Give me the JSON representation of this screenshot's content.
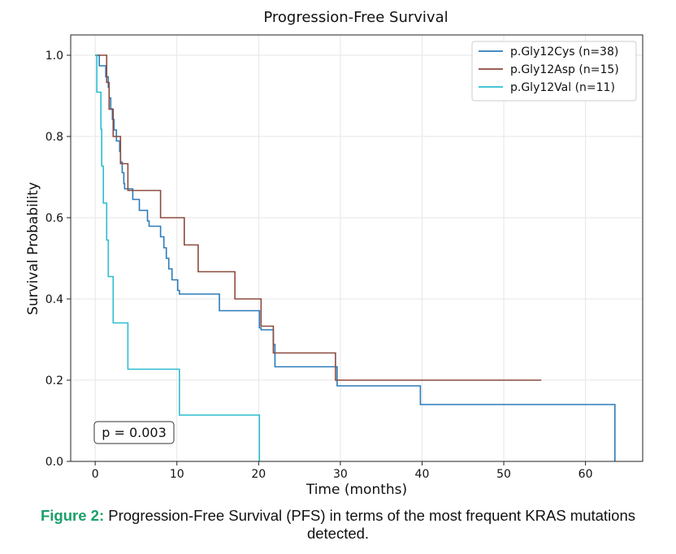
{
  "chart_data": {
    "type": "line",
    "title": "Progression-Free Survival",
    "xlabel": "Time (months)",
    "ylabel": "Survival Probability",
    "xlim": [
      -3,
      67
    ],
    "ylim": [
      0,
      1.05
    ],
    "xticks": [
      0,
      10,
      20,
      30,
      40,
      50,
      60
    ],
    "yticks": [
      0.0,
      0.2,
      0.4,
      0.6,
      0.8,
      1.0
    ],
    "xtick_labels": [
      "0",
      "10",
      "20",
      "30",
      "40",
      "50",
      "60"
    ],
    "ytick_labels": [
      "0.0",
      "0.2",
      "0.4",
      "0.6",
      "0.8",
      "1.0"
    ],
    "grid": true,
    "legend_position": "top-right",
    "annotation": "p = 0.003",
    "series": [
      {
        "name": "p.Gly12Cys (n=38)",
        "color": "#2b7bba",
        "step_points": [
          [
            0.0,
            1.0
          ],
          [
            0.5,
            1.0
          ],
          [
            0.5,
            0.974
          ],
          [
            1.3,
            0.974
          ],
          [
            1.3,
            0.947
          ],
          [
            1.6,
            0.947
          ],
          [
            1.6,
            0.921
          ],
          [
            1.7,
            0.921
          ],
          [
            1.7,
            0.895
          ],
          [
            1.9,
            0.895
          ],
          [
            1.9,
            0.868
          ],
          [
            2.1,
            0.868
          ],
          [
            2.1,
            0.842
          ],
          [
            2.3,
            0.842
          ],
          [
            2.3,
            0.816
          ],
          [
            2.6,
            0.816
          ],
          [
            2.6,
            0.789
          ],
          [
            3.0,
            0.789
          ],
          [
            3.0,
            0.763
          ],
          [
            3.1,
            0.763
          ],
          [
            3.1,
            0.737
          ],
          [
            3.3,
            0.737
          ],
          [
            3.3,
            0.711
          ],
          [
            3.5,
            0.711
          ],
          [
            3.5,
            0.684
          ],
          [
            3.6,
            0.684
          ],
          [
            3.6,
            0.671
          ],
          [
            4.6,
            0.671
          ],
          [
            4.6,
            0.645
          ],
          [
            5.4,
            0.645
          ],
          [
            5.4,
            0.618
          ],
          [
            6.4,
            0.618
          ],
          [
            6.4,
            0.592
          ],
          [
            6.6,
            0.592
          ],
          [
            6.6,
            0.579
          ],
          [
            8.0,
            0.579
          ],
          [
            8.0,
            0.553
          ],
          [
            8.4,
            0.553
          ],
          [
            8.4,
            0.526
          ],
          [
            8.7,
            0.526
          ],
          [
            8.7,
            0.5
          ],
          [
            9.0,
            0.5
          ],
          [
            9.0,
            0.474
          ],
          [
            9.4,
            0.474
          ],
          [
            9.4,
            0.447
          ],
          [
            10.1,
            0.447
          ],
          [
            10.1,
            0.421
          ],
          [
            10.3,
            0.421
          ],
          [
            10.3,
            0.412
          ],
          [
            15.2,
            0.412
          ],
          [
            15.2,
            0.371
          ],
          [
            20.1,
            0.371
          ],
          [
            20.1,
            0.329
          ],
          [
            20.3,
            0.329
          ],
          [
            20.3,
            0.324
          ],
          [
            21.8,
            0.324
          ],
          [
            21.8,
            0.288
          ],
          [
            22.0,
            0.288
          ],
          [
            22.0,
            0.233
          ],
          [
            29.6,
            0.233
          ],
          [
            29.6,
            0.186
          ],
          [
            39.8,
            0.186
          ],
          [
            39.8,
            0.14
          ],
          [
            63.6,
            0.14
          ],
          [
            63.6,
            0.0
          ]
        ]
      },
      {
        "name": "p.Gly12Asp (n=15)",
        "color": "#8b4a3e",
        "step_points": [
          [
            0.0,
            1.0
          ],
          [
            1.4,
            1.0
          ],
          [
            1.4,
            0.933
          ],
          [
            1.7,
            0.933
          ],
          [
            1.7,
            0.867
          ],
          [
            2.2,
            0.867
          ],
          [
            2.2,
            0.8
          ],
          [
            3.1,
            0.8
          ],
          [
            3.1,
            0.733
          ],
          [
            4.0,
            0.733
          ],
          [
            4.0,
            0.667
          ],
          [
            8.0,
            0.667
          ],
          [
            8.0,
            0.6
          ],
          [
            10.9,
            0.6
          ],
          [
            10.9,
            0.533
          ],
          [
            12.6,
            0.533
          ],
          [
            12.6,
            0.467
          ],
          [
            17.1,
            0.467
          ],
          [
            17.1,
            0.4
          ],
          [
            20.3,
            0.4
          ],
          [
            20.3,
            0.333
          ],
          [
            21.8,
            0.333
          ],
          [
            21.8,
            0.267
          ],
          [
            29.4,
            0.267
          ],
          [
            29.4,
            0.2
          ],
          [
            54.6,
            0.2
          ]
        ]
      },
      {
        "name": "p.Gly12Val (n=11)",
        "color": "#2bbed0",
        "step_points": [
          [
            0.0,
            1.0
          ],
          [
            0.2,
            1.0
          ],
          [
            0.2,
            0.909
          ],
          [
            0.7,
            0.909
          ],
          [
            0.7,
            0.818
          ],
          [
            0.8,
            0.818
          ],
          [
            0.8,
            0.727
          ],
          [
            1.0,
            0.727
          ],
          [
            1.0,
            0.636
          ],
          [
            1.4,
            0.636
          ],
          [
            1.4,
            0.545
          ],
          [
            1.6,
            0.545
          ],
          [
            1.6,
            0.455
          ],
          [
            2.2,
            0.455
          ],
          [
            2.2,
            0.341
          ],
          [
            4.0,
            0.341
          ],
          [
            4.0,
            0.227
          ],
          [
            10.3,
            0.227
          ],
          [
            10.3,
            0.114
          ],
          [
            20.1,
            0.114
          ],
          [
            20.1,
            0.0
          ]
        ]
      }
    ]
  },
  "caption": {
    "label": "Figure 2:",
    "text": "Progression-Free Survival (PFS) in terms of the most frequent KRAS mutations detected."
  }
}
